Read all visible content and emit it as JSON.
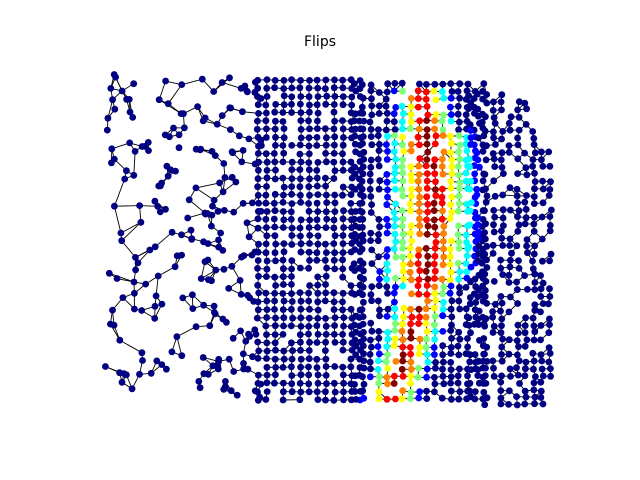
{
  "figure": {
    "title": "Flips"
  },
  "graph": {
    "node_default_color": "#000080",
    "edge_color": "#000000",
    "colormap": "jet",
    "colorbar_shown": false,
    "axes_shown": false
  },
  "colors": {
    "cold": "#000080",
    "blue": "#0000ff",
    "cyan": "#00ffff",
    "green": "#7dff7a",
    "yellow": "#ffff00",
    "orange": "#ff8000",
    "red": "#ff0000",
    "dark_red": "#800000"
  }
}
